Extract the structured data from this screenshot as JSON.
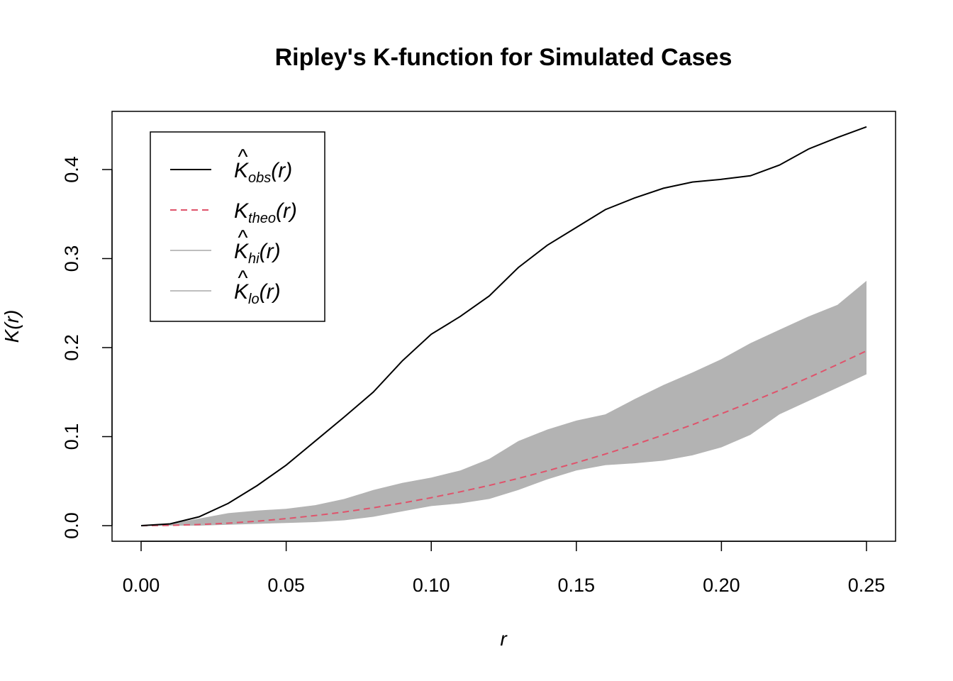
{
  "chart_data": {
    "type": "line",
    "title": "Ripley's K-function for Simulated Cases",
    "xlabel": "r",
    "ylabel": "K(r)",
    "xlim": [
      0,
      0.25
    ],
    "ylim": [
      0,
      0.45
    ],
    "xticks": [
      "0.00",
      "0.05",
      "0.10",
      "0.15",
      "0.20",
      "0.25"
    ],
    "yticks": [
      "0.0",
      "0.1",
      "0.2",
      "0.3",
      "0.4"
    ],
    "grid": false,
    "legend_position": "top-left",
    "legend": [
      {
        "base": "K",
        "hat": "^",
        "sub": "obs",
        "tail": "(r)",
        "color": "#000000",
        "style": "solid"
      },
      {
        "base": "K",
        "hat": "",
        "sub": "theo",
        "tail": "(r)",
        "color": "#DF536B",
        "style": "dashed"
      },
      {
        "base": "K",
        "hat": "^",
        "sub": "hi",
        "tail": "(r)",
        "color": "#BEBEBE",
        "style": "solid"
      },
      {
        "base": "K",
        "hat": "^",
        "sub": "lo",
        "tail": "(r)",
        "color": "#BEBEBE",
        "style": "solid"
      }
    ],
    "x": [
      0,
      0.01,
      0.02,
      0.03,
      0.04,
      0.05,
      0.06,
      0.07,
      0.08,
      0.09,
      0.1,
      0.11,
      0.12,
      0.13,
      0.14,
      0.15,
      0.16,
      0.17,
      0.18,
      0.19,
      0.2,
      0.21,
      0.22,
      0.23,
      0.24,
      0.25
    ],
    "series": [
      {
        "name": "obs",
        "color": "#000000",
        "values": [
          0,
          0.002,
          0.01,
          0.025,
          0.045,
          0.068,
          0.095,
          0.122,
          0.15,
          0.185,
          0.215,
          0.235,
          0.258,
          0.29,
          0.315,
          0.335,
          0.355,
          0.368,
          0.379,
          0.386,
          0.389,
          0.393,
          0.405,
          0.423,
          0.436,
          0.448
        ]
      },
      {
        "name": "theo",
        "color": "#DF536B",
        "values": [
          0,
          0.0003,
          0.0013,
          0.0028,
          0.005,
          0.0079,
          0.0113,
          0.0154,
          0.0201,
          0.0254,
          0.0314,
          0.038,
          0.0452,
          0.0531,
          0.0616,
          0.0707,
          0.0804,
          0.0908,
          0.1018,
          0.1134,
          0.1257,
          0.1385,
          0.152,
          0.1662,
          0.181,
          0.1963
        ]
      },
      {
        "name": "hi",
        "color": "#B3B3B3",
        "values": [
          0,
          0.002,
          0.008,
          0.014,
          0.017,
          0.019,
          0.023,
          0.03,
          0.04,
          0.048,
          0.054,
          0.062,
          0.075,
          0.095,
          0.108,
          0.118,
          0.125,
          0.142,
          0.158,
          0.172,
          0.187,
          0.205,
          0.22,
          0.235,
          0.248,
          0.275
        ]
      },
      {
        "name": "lo",
        "color": "#B3B3B3",
        "values": [
          0,
          0,
          0,
          0.001,
          0.002,
          0.003,
          0.004,
          0.006,
          0.01,
          0.016,
          0.022,
          0.025,
          0.03,
          0.04,
          0.052,
          0.062,
          0.068,
          0.07,
          0.073,
          0.079,
          0.088,
          0.102,
          0.125,
          0.14,
          0.155,
          0.17
        ]
      }
    ]
  }
}
